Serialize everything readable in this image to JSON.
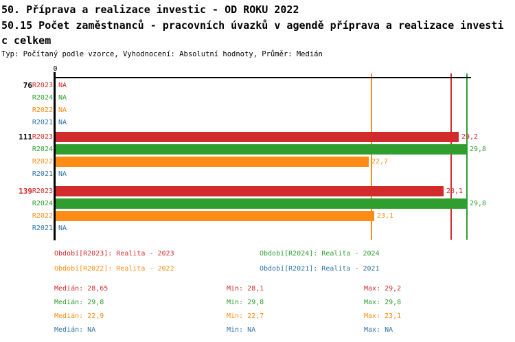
{
  "header": {
    "title_line1": "50. Příprava a realizace investic - OD ROKU 2022",
    "title_line2": "50.15 Počet zaměstnanců - pracovních úvazků v agendě příprava a realizace investi",
    "title_line3": "c celkem",
    "subtitle": "Typ: Počítaný podle vzorce, Vyhodnocení: Absolutní hodnoty, Průměr: Medián"
  },
  "chart_data": {
    "type": "bar",
    "orientation": "horizontal",
    "x_axis": {
      "origin_label": "0",
      "min": 0,
      "ticks": [
        "0"
      ],
      "grid": false
    },
    "average_method": "Medián",
    "series": [
      {
        "id": "R2023",
        "legend": "Období[R2023]: Realita - 2023",
        "color": "#d22b2b",
        "median": 28.65,
        "min": 28.1,
        "max": 29.2
      },
      {
        "id": "R2024",
        "legend": "Období[R2024]: Realita - 2024",
        "color": "#2f9e2f",
        "median": 29.8,
        "min": 29.8,
        "max": 29.8
      },
      {
        "id": "R2022",
        "legend": "Období[R2022]: Realita - 2022",
        "color": "#ff8c14",
        "median": 22.9,
        "min": 22.7,
        "max": 23.1
      },
      {
        "id": "R2021",
        "legend": "Období[R2021]: Realita - 2021",
        "color": "#2e73a8",
        "median": null,
        "min": null,
        "max": null
      }
    ],
    "groups": [
      {
        "label": "76",
        "label_color": "#000000",
        "rows": [
          {
            "series": "R2023",
            "value": null,
            "display": "NA"
          },
          {
            "series": "R2024",
            "value": null,
            "display": "NA"
          },
          {
            "series": "R2022",
            "value": null,
            "display": "NA"
          },
          {
            "series": "R2021",
            "value": null,
            "display": "NA"
          }
        ]
      },
      {
        "label": "111",
        "label_color": "#000000",
        "rows": [
          {
            "series": "R2023",
            "value": 29.2,
            "display": "29,2"
          },
          {
            "series": "R2024",
            "value": 29.8,
            "display": "29,8"
          },
          {
            "series": "R2022",
            "value": 22.7,
            "display": "22,7"
          },
          {
            "series": "R2021",
            "value": null,
            "display": "NA"
          }
        ]
      },
      {
        "label": "139",
        "label_color": "#d22b2b",
        "rows": [
          {
            "series": "R2023",
            "value": 28.1,
            "display": "28,1"
          },
          {
            "series": "R2024",
            "value": 29.8,
            "display": "29,8"
          },
          {
            "series": "R2022",
            "value": 23.1,
            "display": "23,1"
          },
          {
            "series": "R2021",
            "value": null,
            "display": "NA"
          }
        ]
      }
    ],
    "reference_lines": [
      {
        "series": "R2022",
        "value": 22.9,
        "meaning": "median"
      },
      {
        "series": "R2023",
        "value": 28.65,
        "meaning": "median"
      },
      {
        "series": "R2024",
        "value": 29.8,
        "meaning": "median"
      }
    ],
    "legend_position": "bottom"
  },
  "stats": {
    "rows": [
      {
        "series": "R2023",
        "median": "Medián: 28,65",
        "min": "Min: 28,1",
        "max": "Max: 29,2"
      },
      {
        "series": "R2024",
        "median": "Medián: 29,8",
        "min": "Min: 29,8",
        "max": "Max: 29,8"
      },
      {
        "series": "R2022",
        "median": "Medián: 22,9",
        "min": "Min: 22,7",
        "max": "Max: 23,1"
      },
      {
        "series": "R2021",
        "median": "Medián: NA",
        "min": "Min: NA",
        "max": "Max: NA"
      }
    ]
  }
}
